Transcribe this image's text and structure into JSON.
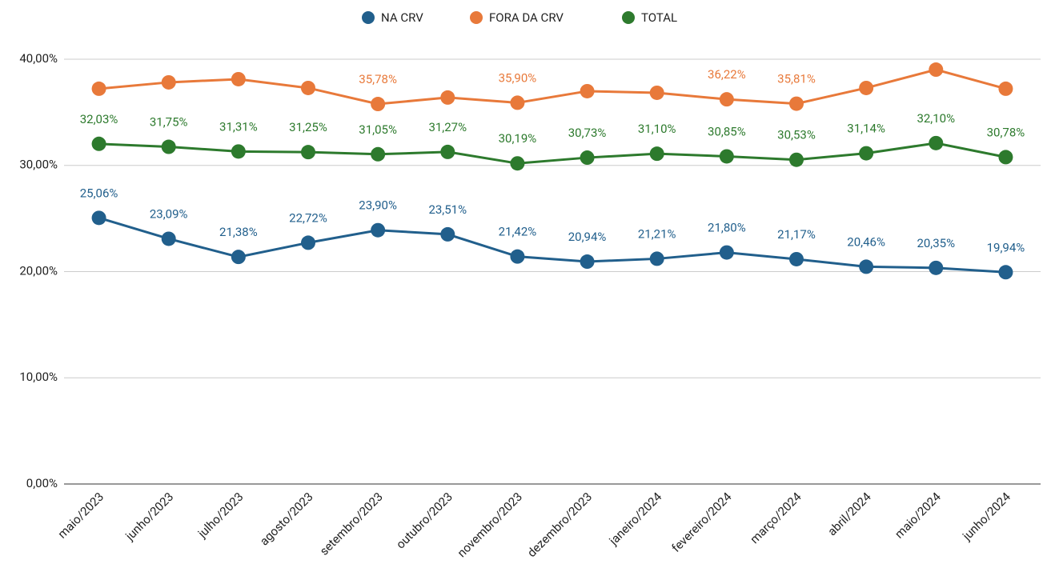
{
  "chart_data": {
    "type": "line",
    "categories": [
      "maio/2023",
      "junho/2023",
      "julho/2023",
      "agosto/2023",
      "setembro/2023",
      "outubro/2023",
      "novembro/2023",
      "dezembro/2023",
      "janeiro/2024",
      "fevereiro/2024",
      "março/2024",
      "abril/2024",
      "maio/2024",
      "junho/2024"
    ],
    "series": [
      {
        "name": "NA CRV",
        "color": "#215f8c",
        "values": [
          25.06,
          23.09,
          21.38,
          22.72,
          23.9,
          23.51,
          21.42,
          20.94,
          21.21,
          21.8,
          21.17,
          20.46,
          20.35,
          19.94
        ],
        "value_labels": [
          "25,06%",
          "23,09%",
          "21,38%",
          "22,72%",
          "23,90%",
          "23,51%",
          "21,42%",
          "20,94%",
          "21,21%",
          "21,80%",
          "21,17%",
          "20,46%",
          "20,35%",
          "19,94%"
        ]
      },
      {
        "name": "FORA DA CRV",
        "color": "#e8793a",
        "values": [
          37.22,
          37.82,
          38.12,
          37.29,
          35.78,
          36.39,
          35.9,
          36.99,
          36.84,
          36.22,
          35.81,
          37.29,
          39.02,
          37.22
        ],
        "value_labels": [
          null,
          null,
          null,
          null,
          "35,78%",
          null,
          "35,90%",
          null,
          null,
          "36,22%",
          "35,81%",
          null,
          null,
          null
        ]
      },
      {
        "name": "TOTAL",
        "color": "#2d7a2d",
        "values": [
          32.03,
          31.75,
          31.31,
          31.25,
          31.05,
          31.27,
          30.19,
          30.73,
          31.1,
          30.85,
          30.53,
          31.14,
          32.1,
          30.78
        ],
        "value_labels": [
          "32,03%",
          "31,75%",
          "31,31%",
          "31,25%",
          "31,05%",
          "31,27%",
          "30,19%",
          "30,73%",
          "31,10%",
          "30,85%",
          "30,53%",
          "31,14%",
          "32,10%",
          "30,78%"
        ]
      }
    ],
    "ylim": [
      0,
      40
    ],
    "yticks": [
      {
        "value": 0,
        "label": "0,00%"
      },
      {
        "value": 10,
        "label": "10,00%"
      },
      {
        "value": 20,
        "label": "20,00%"
      },
      {
        "value": 30,
        "label": "30,00%"
      },
      {
        "value": 40,
        "label": "40,00%"
      }
    ],
    "grid": true,
    "legend": "top"
  }
}
